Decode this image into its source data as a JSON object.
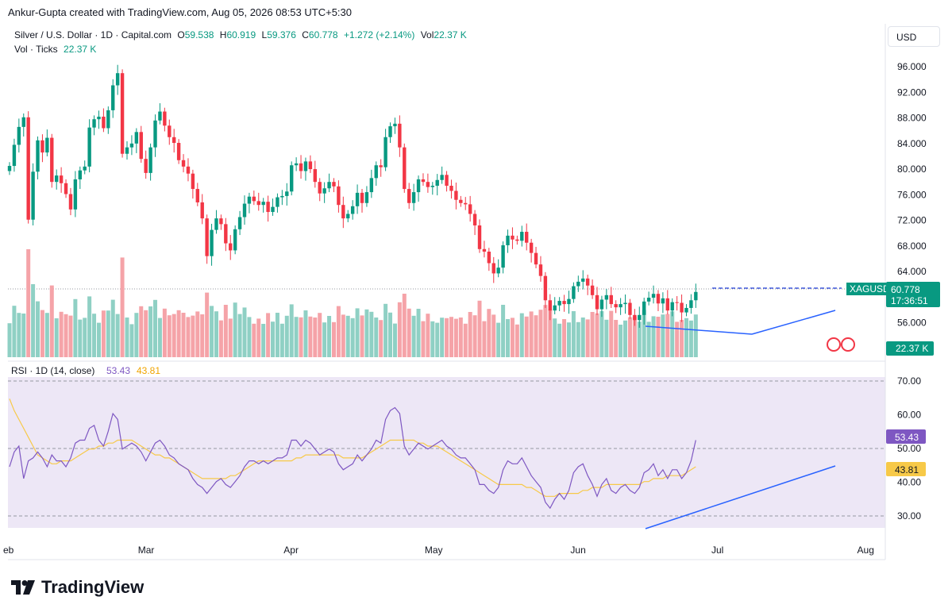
{
  "header": {
    "attribution": "Ankur-Gupta created with TradingView.com, Aug 05, 2026 08:53 UTC+5:30"
  },
  "legend": {
    "symbol": "Silver / U.S. Dollar · 1D · Capital.com",
    "o_label": "O",
    "o_value": "59.538",
    "h_label": "H",
    "h_value": "60.919",
    "l_label": "L",
    "l_value": "59.376",
    "c_label": "C",
    "c_value": "60.778",
    "change": "+1.272 (+2.14%)",
    "vol_label": "Vol",
    "vol_value": "22.37 K",
    "vol_ticks_label": "Vol · Ticks",
    "vol_ticks_value": "22.37 K"
  },
  "rsi_legend": {
    "label": "RSI · 1D (14, close)",
    "rsi_value": "53.43",
    "ma_value": "43.81"
  },
  "currency_button": "USD",
  "footer": {
    "brand": "TradingView"
  },
  "colors": {
    "up": "#089981",
    "down": "#f23645",
    "vol_up": "#8fd0c4",
    "vol_down": "#f5a3a8",
    "rsi_line": "#7e57c2",
    "rsi_ma": "#f7c948",
    "rsi_band": "#ede7f6",
    "trendline": "#2962ff"
  },
  "chart_data": [
    {
      "type": "candlestick",
      "symbol": "XAGUSD",
      "y_ticks": [
        "96.000",
        "92.000",
        "88.000",
        "84.000",
        "80.000",
        "76.000",
        "72.000",
        "68.000",
        "64.000",
        "56.000"
      ],
      "ylim": [
        50.6,
        98.0
      ],
      "x_ticks": [
        "eb",
        "Mar",
        "Apr",
        "May",
        "Jun",
        "Jul",
        "Aug"
      ],
      "x_tick_days": [
        -1,
        28,
        59,
        89,
        120,
        150,
        181
      ],
      "last_price": "60.778",
      "last_label": "XAGUSD",
      "countdown": "17:36:51",
      "volume_label": "22.37 K",
      "closes": [
        80.5,
        83.8,
        86.6,
        88.1,
        72.1,
        79.6,
        84.5,
        82.6,
        84.9,
        78.0,
        79.0,
        77.8,
        76.1,
        73.7,
        78.4,
        79.8,
        80.4,
        86.5,
        87.8,
        88.2,
        86.4,
        89.2,
        93.1,
        95.0,
        82.4,
        83.4,
        84.0,
        85.8,
        81.6,
        79.4,
        83.4,
        87.6,
        89.0,
        86.8,
        85.0,
        84.1,
        81.4,
        80.4,
        79.3,
        76.9,
        74.8,
        72.3,
        66.4,
        70.5,
        72.3,
        71.4,
        68.4,
        67.3,
        70.6,
        72.5,
        74.6,
        75.7,
        75.0,
        74.4,
        74.9,
        73.3,
        74.1,
        75.6,
        75.8,
        76.5,
        80.6,
        80.9,
        79.7,
        81.2,
        80.0,
        78.0,
        76.2,
        77.0,
        78.0,
        77.3,
        74.4,
        72.3,
        73.0,
        74.2,
        76.3,
        74.7,
        76.4,
        78.6,
        80.6,
        80.3,
        85.0,
        86.7,
        87.1,
        83.4,
        76.9,
        74.7,
        76.4,
        78.4,
        78.0,
        77.2,
        77.4,
        78.3,
        79.1,
        77.4,
        76.6,
        75.2,
        74.7,
        74.5,
        73.0,
        71.2,
        67.5,
        67.1,
        65.3,
        63.7,
        64.6,
        68.1,
        69.6,
        69.0,
        68.8,
        70.2,
        68.5,
        66.9,
        65.1,
        63.3,
        59.5,
        57.9,
        58.7,
        59.4,
        58.9,
        59.7,
        61.7,
        62.4,
        62.9,
        61.8,
        60.3,
        58.1,
        59.6,
        60.3,
        58.9,
        58.4,
        58.9,
        59.1,
        57.2,
        56.4,
        57.2,
        59.3,
        59.9,
        60.5,
        59.0,
        59.8,
        57.9,
        59.2,
        59.1,
        57.6,
        58.3,
        59.5,
        60.8
      ],
      "volume_description": "volume histogram below candles, bars colored by direction"
    },
    {
      "type": "line",
      "title": "RSI · 1D (14, close)",
      "y_ticks": [
        "70.00",
        "60.00",
        "50.00",
        "40.00",
        "30.00"
      ],
      "ylim": [
        22,
        73
      ],
      "band": [
        30,
        70
      ],
      "midline": 50,
      "rsi_last": "53.43",
      "ma_last": "43.81",
      "series": [
        {
          "name": "RSI",
          "values": [
            44,
            49,
            51,
            40,
            46,
            47,
            49,
            47,
            44,
            48,
            46,
            46,
            44,
            47,
            52,
            53,
            53,
            57,
            58,
            53,
            51,
            56,
            62,
            60,
            50,
            51,
            52,
            51,
            49,
            46,
            49,
            52,
            53,
            51,
            48,
            47,
            45,
            44,
            43,
            40,
            38,
            37,
            35,
            37,
            39,
            40,
            38,
            37,
            39,
            41,
            44,
            46,
            46,
            45,
            46,
            45,
            46,
            47,
            47,
            48,
            53,
            53,
            51,
            53,
            52,
            50,
            48,
            49,
            50,
            49,
            45,
            43,
            44,
            45,
            48,
            46,
            48,
            50,
            53,
            52,
            60,
            63,
            64,
            62,
            51,
            48,
            50,
            52,
            51,
            50,
            51,
            52,
            53,
            51,
            50,
            48,
            47,
            47,
            45,
            43,
            38,
            38,
            36,
            35,
            37,
            43,
            46,
            45,
            45,
            47,
            44,
            41,
            39,
            37,
            32,
            30,
            33,
            35,
            33,
            36,
            42,
            44,
            45,
            41,
            38,
            34,
            38,
            40,
            36,
            35,
            37,
            38,
            36,
            35,
            37,
            42,
            43,
            45,
            41,
            43,
            40,
            43,
            43,
            40,
            42,
            46,
            53
          ]
        },
        {
          "name": "MA",
          "values": [
            67,
            63,
            60,
            57,
            54,
            51,
            48,
            47,
            46,
            45,
            45,
            46,
            46,
            46,
            47,
            48,
            49,
            50,
            50,
            51,
            51,
            52,
            52,
            53,
            53,
            53,
            53,
            52,
            51,
            50,
            49,
            48,
            48,
            47,
            47,
            46,
            45,
            44,
            43,
            42,
            41,
            40,
            40,
            40,
            40,
            40,
            40,
            41,
            41,
            42,
            43,
            44,
            45,
            46,
            46,
            46,
            46,
            46,
            46,
            46,
            46,
            47,
            47,
            48,
            48,
            48,
            48,
            48,
            48,
            48,
            48,
            47,
            47,
            47,
            47,
            47,
            48,
            49,
            50,
            51,
            52,
            53,
            53,
            53,
            53,
            53,
            53,
            52,
            52,
            51,
            51,
            51,
            50,
            49,
            48,
            47,
            46,
            45,
            44,
            43,
            42,
            41,
            40,
            39,
            38,
            38,
            38,
            38,
            38,
            38,
            37,
            37,
            36,
            35,
            34,
            34,
            34,
            35,
            35,
            35,
            35,
            35,
            36,
            36,
            37,
            37,
            37,
            38,
            38,
            38,
            38,
            38,
            38,
            38,
            38,
            39,
            39,
            40,
            40,
            40,
            41,
            41,
            41,
            41,
            42,
            43,
            44
          ]
        }
      ]
    }
  ]
}
